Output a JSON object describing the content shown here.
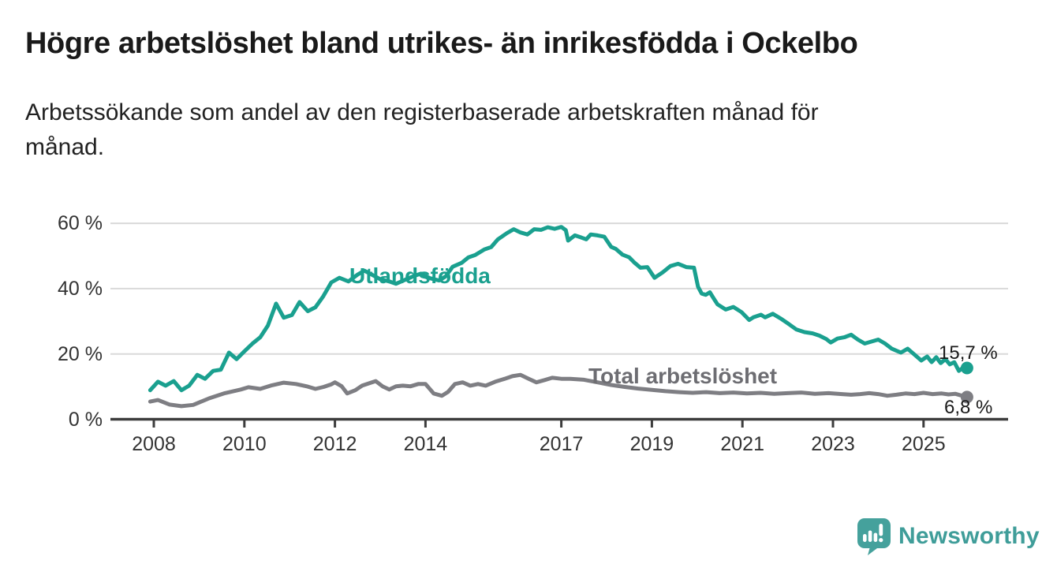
{
  "header": {
    "title": "Högre arbetslöshet bland utrikes- än inrikesfödda i Ockelbo",
    "subtitle_line1": "Arbetssökande som andel av den registerbaserade arbetskraften månad för",
    "subtitle_line2": "månad."
  },
  "footer": {
    "logo_text": "Newsworthy",
    "logo_color": "#3f9d99",
    "logo_icon_color": "#45a19c"
  },
  "colors": {
    "title": "#1a1a1a",
    "subtitle": "#222222",
    "axis": "#3d3d3d",
    "gridline": "#d9d9d9",
    "tick_label": "#333333",
    "series_utlandsfodda": "#1aa08f",
    "series_total": "#7e7e83",
    "series_total_label": "#6d6d72",
    "end_label": "#1a1a1a"
  },
  "chart_data": {
    "type": "line",
    "title": "Högre arbetslöshet bland utrikes- än inrikesfödda i Ockelbo",
    "subtitle": "Arbetssökande som andel av den registerbaserade arbetskraften månad för månad.",
    "unit": "%",
    "grid": "horizontal-only",
    "legend": "inline-series-labels",
    "x_axis": {
      "label": "",
      "range": [
        2007.9,
        2026.0
      ],
      "ticks": [
        2008,
        2010,
        2012,
        2014,
        2017,
        2019,
        2021,
        2023,
        2025
      ],
      "tick_labels": [
        "2008",
        "2010",
        "2012",
        "2014",
        "2017",
        "2019",
        "2021",
        "2023",
        "2025"
      ]
    },
    "y_axis": {
      "label": "",
      "range": [
        0,
        62
      ],
      "ticks": [
        0,
        20,
        40,
        60
      ],
      "tick_labels": [
        "0 %",
        "20 %",
        "40 %",
        "60 %"
      ]
    },
    "series": [
      {
        "name": "Utlandsfödda",
        "color": "#1aa08f",
        "end_value": 15.7,
        "end_label": "15,7 %",
        "points": [
          [
            2007.92,
            8.9
          ],
          [
            2008.09,
            11.5
          ],
          [
            2008.26,
            10.3
          ],
          [
            2008.44,
            11.7
          ],
          [
            2008.61,
            8.9
          ],
          [
            2008.78,
            10.3
          ],
          [
            2008.96,
            13.6
          ],
          [
            2009.13,
            12.4
          ],
          [
            2009.31,
            14.8
          ],
          [
            2009.48,
            15.2
          ],
          [
            2009.66,
            20.4
          ],
          [
            2009.83,
            18.4
          ],
          [
            2010.0,
            20.8
          ],
          [
            2010.18,
            23.2
          ],
          [
            2010.35,
            25.1
          ],
          [
            2010.52,
            28.7
          ],
          [
            2010.7,
            35.4
          ],
          [
            2010.87,
            31.1
          ],
          [
            2011.05,
            31.9
          ],
          [
            2011.22,
            35.9
          ],
          [
            2011.4,
            33.1
          ],
          [
            2011.57,
            34.3
          ],
          [
            2011.74,
            37.6
          ],
          [
            2011.92,
            41.9
          ],
          [
            2012.1,
            43.3
          ],
          [
            2012.3,
            42.2
          ],
          [
            2012.5,
            44.3
          ],
          [
            2012.65,
            45.5
          ],
          [
            2012.8,
            44.4
          ],
          [
            2013.0,
            42.9
          ],
          [
            2013.2,
            42.2
          ],
          [
            2013.35,
            41.5
          ],
          [
            2013.55,
            42.7
          ],
          [
            2013.75,
            43.9
          ],
          [
            2013.9,
            44.6
          ],
          [
            2014.1,
            43.2
          ],
          [
            2014.3,
            42.5
          ],
          [
            2014.45,
            43.8
          ],
          [
            2014.6,
            46.7
          ],
          [
            2014.8,
            47.9
          ],
          [
            2014.95,
            49.6
          ],
          [
            2015.1,
            50.3
          ],
          [
            2015.3,
            52.0
          ],
          [
            2015.45,
            52.7
          ],
          [
            2015.6,
            55.1
          ],
          [
            2015.8,
            57.0
          ],
          [
            2015.95,
            58.2
          ],
          [
            2016.1,
            57.2
          ],
          [
            2016.25,
            56.6
          ],
          [
            2016.4,
            58.2
          ],
          [
            2016.55,
            58.0
          ],
          [
            2016.7,
            58.8
          ],
          [
            2016.85,
            58.3
          ],
          [
            2017.0,
            58.9
          ],
          [
            2017.1,
            57.9
          ],
          [
            2017.15,
            54.7
          ],
          [
            2017.3,
            56.3
          ],
          [
            2017.45,
            55.6
          ],
          [
            2017.55,
            55.1
          ],
          [
            2017.65,
            56.6
          ],
          [
            2017.8,
            56.3
          ],
          [
            2017.95,
            55.9
          ],
          [
            2018.1,
            52.8
          ],
          [
            2018.2,
            52.2
          ],
          [
            2018.35,
            50.4
          ],
          [
            2018.5,
            49.6
          ],
          [
            2018.62,
            47.9
          ],
          [
            2018.75,
            46.4
          ],
          [
            2018.9,
            46.6
          ],
          [
            2019.06,
            43.3
          ],
          [
            2019.24,
            45.0
          ],
          [
            2019.41,
            46.9
          ],
          [
            2019.58,
            47.6
          ],
          [
            2019.76,
            46.6
          ],
          [
            2019.93,
            46.4
          ],
          [
            2020.02,
            40.6
          ],
          [
            2020.1,
            38.5
          ],
          [
            2020.19,
            38.1
          ],
          [
            2020.28,
            38.9
          ],
          [
            2020.37,
            36.9
          ],
          [
            2020.45,
            35.2
          ],
          [
            2020.63,
            33.6
          ],
          [
            2020.8,
            34.4
          ],
          [
            2020.98,
            32.8
          ],
          [
            2021.15,
            30.4
          ],
          [
            2021.24,
            31.2
          ],
          [
            2021.41,
            32.0
          ],
          [
            2021.5,
            31.2
          ],
          [
            2021.67,
            32.3
          ],
          [
            2021.84,
            30.9
          ],
          [
            2022.02,
            29.2
          ],
          [
            2022.19,
            27.5
          ],
          [
            2022.37,
            26.7
          ],
          [
            2022.55,
            26.3
          ],
          [
            2022.7,
            25.6
          ],
          [
            2022.85,
            24.6
          ],
          [
            2022.95,
            23.5
          ],
          [
            2023.1,
            24.7
          ],
          [
            2023.25,
            25.1
          ],
          [
            2023.4,
            25.9
          ],
          [
            2023.55,
            24.4
          ],
          [
            2023.7,
            23.2
          ],
          [
            2023.85,
            23.8
          ],
          [
            2024.0,
            24.4
          ],
          [
            2024.15,
            23.2
          ],
          [
            2024.3,
            21.6
          ],
          [
            2024.5,
            20.4
          ],
          [
            2024.65,
            21.6
          ],
          [
            2024.8,
            19.8
          ],
          [
            2024.95,
            18.0
          ],
          [
            2025.08,
            19.2
          ],
          [
            2025.18,
            17.5
          ],
          [
            2025.28,
            19.0
          ],
          [
            2025.38,
            17.2
          ],
          [
            2025.48,
            18.4
          ],
          [
            2025.58,
            16.8
          ],
          [
            2025.68,
            17.5
          ],
          [
            2025.78,
            14.8
          ],
          [
            2025.88,
            15.9
          ],
          [
            2025.96,
            15.7
          ]
        ]
      },
      {
        "name": "Total arbetslöshet",
        "color": "#7e7e83",
        "end_value": 6.8,
        "end_label": "6,8 %",
        "points": [
          [
            2007.92,
            5.4
          ],
          [
            2008.09,
            5.9
          ],
          [
            2008.35,
            4.5
          ],
          [
            2008.61,
            4.0
          ],
          [
            2008.87,
            4.4
          ],
          [
            2009.22,
            6.4
          ],
          [
            2009.57,
            8.0
          ],
          [
            2009.92,
            9.1
          ],
          [
            2010.09,
            9.8
          ],
          [
            2010.35,
            9.3
          ],
          [
            2010.61,
            10.4
          ],
          [
            2010.87,
            11.2
          ],
          [
            2011.14,
            10.8
          ],
          [
            2011.4,
            10.0
          ],
          [
            2011.57,
            9.3
          ],
          [
            2011.75,
            9.9
          ],
          [
            2011.92,
            10.7
          ],
          [
            2012.0,
            11.3
          ],
          [
            2012.15,
            10.1
          ],
          [
            2012.27,
            7.9
          ],
          [
            2012.45,
            8.9
          ],
          [
            2012.6,
            10.3
          ],
          [
            2012.75,
            11.0
          ],
          [
            2012.9,
            11.7
          ],
          [
            2013.05,
            10.1
          ],
          [
            2013.2,
            9.1
          ],
          [
            2013.35,
            10.1
          ],
          [
            2013.5,
            10.3
          ],
          [
            2013.67,
            10.1
          ],
          [
            2013.84,
            10.8
          ],
          [
            2014.0,
            10.8
          ],
          [
            2014.18,
            7.9
          ],
          [
            2014.36,
            7.2
          ],
          [
            2014.5,
            8.4
          ],
          [
            2014.65,
            10.8
          ],
          [
            2014.82,
            11.3
          ],
          [
            2014.99,
            10.3
          ],
          [
            2015.16,
            10.8
          ],
          [
            2015.33,
            10.3
          ],
          [
            2015.54,
            11.5
          ],
          [
            2015.75,
            12.4
          ],
          [
            2015.92,
            13.2
          ],
          [
            2016.1,
            13.6
          ],
          [
            2016.28,
            12.4
          ],
          [
            2016.45,
            11.3
          ],
          [
            2016.63,
            12.0
          ],
          [
            2016.8,
            12.7
          ],
          [
            2017.0,
            12.4
          ],
          [
            2017.2,
            12.4
          ],
          [
            2017.5,
            12.1
          ],
          [
            2017.8,
            11.3
          ],
          [
            2018.1,
            10.5
          ],
          [
            2018.4,
            9.9
          ],
          [
            2018.7,
            9.4
          ],
          [
            2019.0,
            9.0
          ],
          [
            2019.3,
            8.6
          ],
          [
            2019.6,
            8.3
          ],
          [
            2019.9,
            8.1
          ],
          [
            2020.2,
            8.3
          ],
          [
            2020.5,
            8.0
          ],
          [
            2020.8,
            8.2
          ],
          [
            2021.1,
            7.9
          ],
          [
            2021.4,
            8.1
          ],
          [
            2021.7,
            7.8
          ],
          [
            2022.0,
            8.0
          ],
          [
            2022.3,
            8.2
          ],
          [
            2022.6,
            7.8
          ],
          [
            2022.9,
            8.0
          ],
          [
            2023.2,
            7.7
          ],
          [
            2023.4,
            7.5
          ],
          [
            2023.6,
            7.7
          ],
          [
            2023.8,
            8.0
          ],
          [
            2024.0,
            7.7
          ],
          [
            2024.2,
            7.2
          ],
          [
            2024.4,
            7.5
          ],
          [
            2024.6,
            7.9
          ],
          [
            2024.8,
            7.7
          ],
          [
            2025.0,
            8.1
          ],
          [
            2025.2,
            7.7
          ],
          [
            2025.4,
            7.9
          ],
          [
            2025.55,
            7.6
          ],
          [
            2025.7,
            7.8
          ],
          [
            2025.85,
            7.2
          ],
          [
            2025.96,
            6.8
          ]
        ]
      }
    ]
  }
}
